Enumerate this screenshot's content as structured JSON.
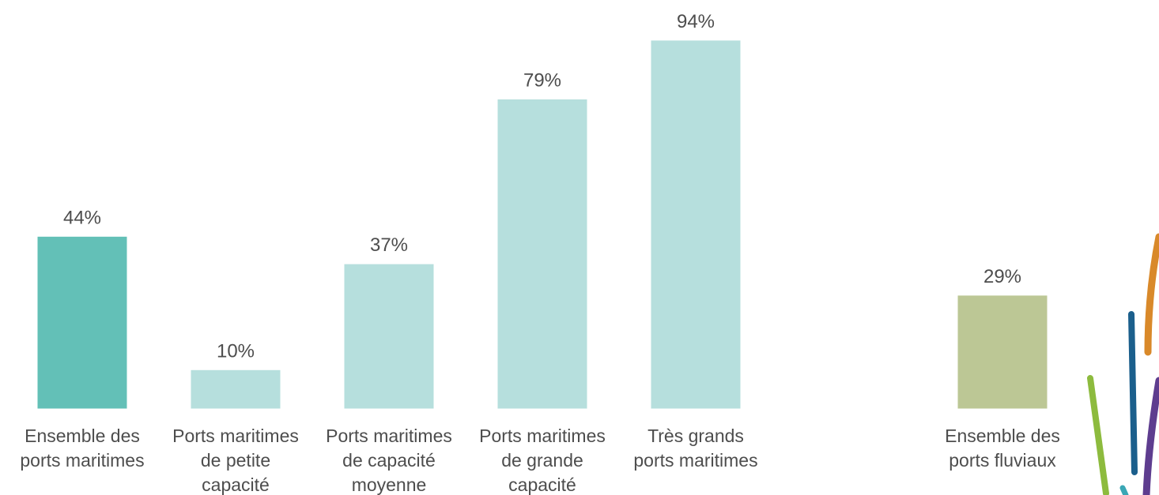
{
  "chart_data": {
    "type": "bar",
    "categories": [
      [
        "Ensemble des",
        "ports maritimes"
      ],
      [
        "Ports maritimes",
        "de petite",
        "capacité"
      ],
      [
        "Ports maritimes",
        "de capacité",
        "moyenne"
      ],
      [
        "Ports maritimes",
        "de grande",
        "capacité"
      ],
      [
        "Très grands",
        "ports maritimes"
      ],
      [
        "Ensemble des",
        "ports fluviaux"
      ]
    ],
    "values": [
      44,
      10,
      37,
      79,
      94,
      29
    ],
    "data_labels": [
      "44%",
      "10%",
      "37%",
      "79%",
      "94%",
      "29%"
    ],
    "unit": "%",
    "colors": [
      "#63c0b7",
      "#b6dfdd",
      "#b6dfdd",
      "#b6dfdd",
      "#b6dfdd",
      "#bcc795"
    ],
    "ylim": [
      0,
      100
    ],
    "grid": false,
    "legend": "none",
    "title": "",
    "xlabel": "",
    "ylabel": ""
  },
  "decoration": {
    "stroke_colors": [
      "#d9892a",
      "#1b5f8c",
      "#8dbb3e",
      "#5e3d8f",
      "#3aa7b5"
    ]
  }
}
